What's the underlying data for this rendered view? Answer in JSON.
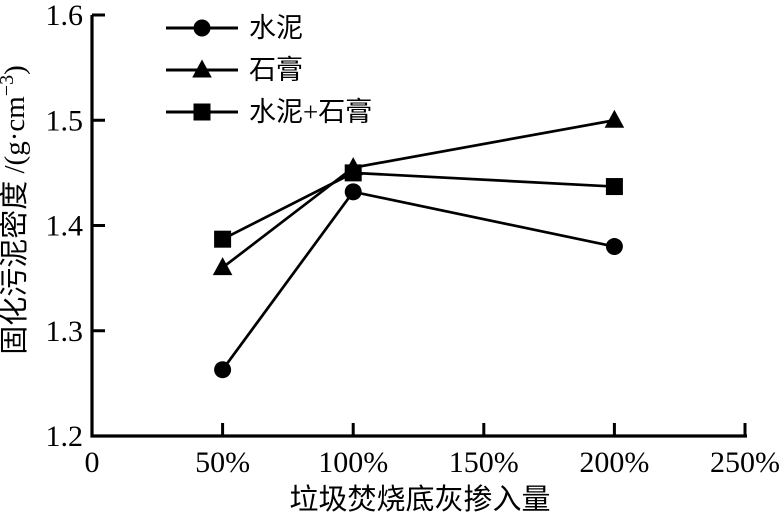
{
  "figure": {
    "background": "#ffffff",
    "foreground": "#000000"
  },
  "chart_data": {
    "type": "line",
    "title": "",
    "xlabel": "垃圾焚烧底灰掺入量",
    "ylabel": "固化污泥密度 /(g·cm⁻³)",
    "ylabel_parts": {
      "prefix": "固化污泥密度 /(g·cm",
      "superscript": "−3",
      "suffix": ")"
    },
    "xlim": [
      0,
      250
    ],
    "ylim": [
      1.2,
      1.6
    ],
    "x_tick_unit": "%",
    "x_ticks": [
      {
        "value": 0,
        "label": "0"
      },
      {
        "value": 50,
        "label": "50%"
      },
      {
        "value": 100,
        "label": "100%"
      },
      {
        "value": 150,
        "label": "150%"
      },
      {
        "value": 200,
        "label": "200%"
      },
      {
        "value": 250,
        "label": "250%"
      }
    ],
    "y_ticks": [
      {
        "value": 1.2,
        "label": "1.2"
      },
      {
        "value": 1.3,
        "label": "1.3"
      },
      {
        "value": 1.4,
        "label": "1.4"
      },
      {
        "value": 1.5,
        "label": "1.5"
      },
      {
        "value": 1.6,
        "label": "1.6"
      }
    ],
    "x": [
      50,
      100,
      200
    ],
    "series": [
      {
        "name": "水泥",
        "marker": "circle",
        "color": "#000000",
        "values": [
          1.263,
          1.432,
          1.38
        ]
      },
      {
        "name": "石膏",
        "marker": "triangle",
        "color": "#000000",
        "values": [
          1.36,
          1.455,
          1.5
        ]
      },
      {
        "name": "水泥+石膏",
        "marker": "square",
        "color": "#000000",
        "values": [
          1.387,
          1.45,
          1.437
        ]
      }
    ],
    "legend": {
      "position": "top-left-inside",
      "border": false
    },
    "grid": false
  }
}
